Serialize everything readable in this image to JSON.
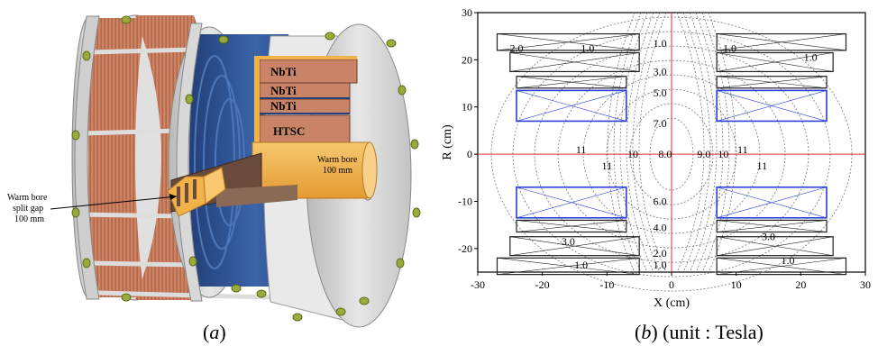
{
  "panel_a": {
    "caption_letter": "a",
    "layer_labels": [
      "NbTi",
      "NbTi",
      "NbTi",
      "HTSC"
    ],
    "warm_bore_label": [
      "Warm bore",
      "100 mm"
    ],
    "split_gap_label": [
      "Warm bore",
      "split gap",
      "100 mm"
    ],
    "colors": {
      "copper": "#c8785a",
      "blue": "#2d4f8c",
      "flange": "#d4d4d4",
      "bolt": "#9aab3a",
      "bore": "#f2b24a"
    }
  },
  "panel_b": {
    "caption_letter": "b",
    "caption_suffix": " (unit : Tesla)",
    "chart_data": {
      "type": "contour",
      "xlabel": "X (cm)",
      "ylabel": "R (cm)",
      "xlim": [
        -30,
        30
      ],
      "ylim": [
        -25,
        30
      ],
      "xticks": [
        "-30",
        "-20",
        "-10",
        "0",
        "10",
        "20",
        "30"
      ],
      "yticks": [
        "30",
        "20",
        "10",
        "0",
        "-10",
        "-20"
      ],
      "contour_labels": [
        {
          "text": "2.0",
          "x": -24,
          "y": 22.5
        },
        {
          "text": "1.0",
          "x": -13,
          "y": 22.5
        },
        {
          "text": "1.0",
          "x": -1.8,
          "y": 23.5
        },
        {
          "text": "1.0",
          "x": 9,
          "y": 22.5
        },
        {
          "text": "1.0",
          "x": 21.5,
          "y": 20.5
        },
        {
          "text": "3.0",
          "x": -1.8,
          "y": 17.5
        },
        {
          "text": "5.0",
          "x": -1.8,
          "y": 13
        },
        {
          "text": "7.0",
          "x": -1.8,
          "y": 6.5
        },
        {
          "text": "11",
          "x": -14,
          "y": 1
        },
        {
          "text": "10",
          "x": -6,
          "y": 0
        },
        {
          "text": "8.0",
          "x": -1,
          "y": 0
        },
        {
          "text": "9.0",
          "x": 5,
          "y": 0
        },
        {
          "text": "10",
          "x": 8,
          "y": 0
        },
        {
          "text": "11",
          "x": 11,
          "y": 1
        },
        {
          "text": "11",
          "x": -10,
          "y": -2.5
        },
        {
          "text": "11",
          "x": 14,
          "y": -2.5
        },
        {
          "text": "6.0",
          "x": -1.8,
          "y": -10
        },
        {
          "text": "4.0",
          "x": -1.8,
          "y": -15.5
        },
        {
          "text": "3.0",
          "x": -16,
          "y": -18.5
        },
        {
          "text": "3.0",
          "x": 15,
          "y": -17.5
        },
        {
          "text": "2.0",
          "x": -1.8,
          "y": -21
        },
        {
          "text": "1.0",
          "x": -1.8,
          "y": -23.5
        },
        {
          "text": "1.0",
          "x": -14,
          "y": -23.5
        },
        {
          "text": "1.0",
          "x": 18,
          "y": -22.5
        }
      ]
    }
  }
}
